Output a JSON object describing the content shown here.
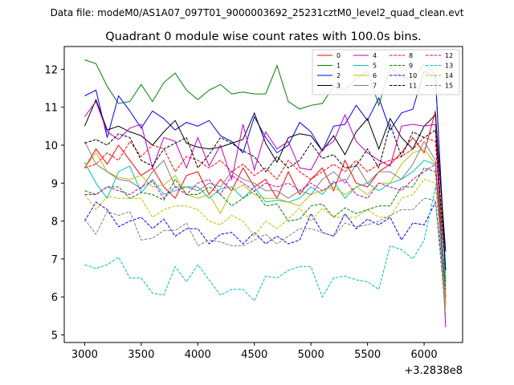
{
  "chart_data": {
    "type": "line",
    "supertitle": "Data file: modeM0/AS1A07_097T01_9000003692_25231cztM0_level2_quad_clean.evt",
    "title": "Quadrant 0 module wise count rates with 100.0s bins.",
    "xlabel": "",
    "ylabel": "",
    "x_offset_label": "+3.2838e8",
    "xlim": [
      2820,
      6340
    ],
    "ylim": [
      4.8,
      12.6
    ],
    "xticks": [
      3000,
      3500,
      4000,
      4500,
      5000,
      5500,
      6000
    ],
    "yticks": [
      5,
      6,
      7,
      8,
      9,
      10,
      11,
      12
    ],
    "x": [
      3000,
      3100,
      3200,
      3300,
      3400,
      3500,
      3600,
      3700,
      3800,
      3900,
      4000,
      4100,
      4200,
      4300,
      4400,
      4500,
      4600,
      4700,
      4800,
      4900,
      5000,
      5100,
      5200,
      5300,
      5400,
      5500,
      5600,
      5700,
      5800,
      5900,
      6000,
      6100,
      6190
    ],
    "legend_position": "top-right",
    "series": [
      {
        "name": "0",
        "color": "#ff0000",
        "dash": "solid",
        "values": [
          9.4,
          9.9,
          9.5,
          10.0,
          9.6,
          9.2,
          9.4,
          8.9,
          8.6,
          9.2,
          9.3,
          8.7,
          9.1,
          8.8,
          9.4,
          8.9,
          9.1,
          8.6,
          9.3,
          8.7,
          9.1,
          9.4,
          8.8,
          9.6,
          9.0,
          8.9,
          9.3,
          9.5,
          9.8,
          10.2,
          9.8,
          10.9,
          5.8
        ]
      },
      {
        "name": "1",
        "color": "#008000",
        "dash": "solid",
        "values": [
          12.25,
          12.15,
          11.55,
          11.1,
          11.15,
          11.6,
          11.15,
          11.65,
          11.9,
          11.45,
          11.2,
          11.45,
          11.6,
          11.35,
          11.4,
          11.35,
          11.35,
          12.1,
          11.15,
          10.95,
          11.05,
          11.1,
          11.55,
          11.45,
          11.75,
          11.95,
          11.05,
          12.05,
          11.8,
          11.7,
          12.15,
          11.85,
          6.4
        ]
      },
      {
        "name": "2",
        "color": "#0000ff",
        "dash": "solid",
        "values": [
          11.3,
          11.45,
          10.2,
          11.3,
          10.9,
          10.45,
          10.9,
          10.7,
          10.4,
          10.6,
          10.5,
          10.65,
          10.25,
          10.1,
          9.8,
          10.75,
          10.2,
          9.8,
          10.0,
          10.6,
          10.35,
          9.85,
          10.5,
          10.55,
          11.05,
          10.65,
          11.25,
          10.4,
          10.85,
          10.95,
          11.95,
          11.8,
          6.7
        ]
      },
      {
        "name": "3",
        "color": "#000000",
        "dash": "solid",
        "values": [
          10.5,
          11.2,
          10.4,
          10.5,
          10.35,
          10.25,
          10.0,
          10.35,
          10.65,
          10.05,
          9.95,
          9.9,
          9.95,
          10.05,
          10.15,
          10.85,
          10.05,
          9.55,
          10.2,
          10.3,
          10.25,
          9.85,
          10.25,
          9.75,
          10.35,
          10.7,
          9.9,
          10.7,
          10.2,
          9.9,
          10.5,
          10.8,
          7.2
        ]
      },
      {
        "name": "4",
        "color": "#bf00bf",
        "dash": "solid",
        "values": [
          10.75,
          11.15,
          10.35,
          10.15,
          10.45,
          10.55,
          9.4,
          10.2,
          10.1,
          9.4,
          10.2,
          9.45,
          10.0,
          9.1,
          10.55,
          9.35,
          10.35,
          9.9,
          10.1,
          9.4,
          9.35,
          9.9,
          10.1,
          10.8,
          10.1,
          9.8,
          9.6,
          9.45,
          10.5,
          10.55,
          10.5,
          10.55,
          5.2
        ]
      },
      {
        "name": "5",
        "color": "#00bfbf",
        "dash": "solid",
        "values": [
          9.55,
          9.0,
          8.6,
          9.3,
          9.45,
          8.75,
          9.1,
          8.7,
          8.8,
          8.9,
          8.9,
          8.6,
          8.85,
          8.9,
          8.6,
          8.9,
          8.5,
          8.55,
          8.5,
          8.6,
          8.9,
          8.7,
          9.05,
          8.6,
          8.9,
          9.0,
          8.8,
          9.0,
          9.1,
          9.3,
          9.6,
          9.5,
          6.3
        ]
      },
      {
        "name": "6",
        "color": "#bfbf00",
        "dash": "solid",
        "values": [
          9.4,
          9.8,
          9.3,
          9.15,
          9.1,
          9.2,
          8.9,
          8.95,
          9.2,
          8.7,
          8.6,
          8.7,
          8.2,
          8.8,
          8.95,
          8.7,
          8.6,
          8.6,
          8.5,
          8.4,
          8.7,
          8.8,
          8.9,
          8.7,
          8.9,
          8.7,
          9.0,
          9.0,
          9.5,
          9.8,
          9.9,
          9.5,
          5.7
        ]
      },
      {
        "name": "7",
        "color": "#808080",
        "dash": "solid",
        "values": [
          10.1,
          9.5,
          9.3,
          9.1,
          9.05,
          8.85,
          9.3,
          9.6,
          8.9,
          8.9,
          8.8,
          9.0,
          8.9,
          9.3,
          9.1,
          9.0,
          8.8,
          8.8,
          8.6,
          8.8,
          8.7,
          9.1,
          9.3,
          9.0,
          9.5,
          9.0,
          9.3,
          9.3,
          9.1,
          9.5,
          10.1,
          9.6,
          5.4
        ]
      },
      {
        "name": "8",
        "color": "#ff0000",
        "dash": "dashed",
        "values": [
          9.4,
          9.5,
          9.8,
          9.6,
          10.1,
          9.7,
          10.0,
          9.9,
          9.3,
          9.7,
          9.6,
          9.4,
          9.6,
          9.3,
          9.5,
          9.2,
          9.4,
          9.1,
          9.6,
          9.3,
          9.1,
          9.3,
          9.5,
          9.3,
          9.6,
          9.3,
          9.5,
          9.6,
          9.7,
          9.9,
          10.2,
          10.1,
          6.0
        ]
      },
      {
        "name": "9",
        "color": "#008000",
        "dash": "dashed",
        "values": [
          8.8,
          8.7,
          8.9,
          8.9,
          8.6,
          8.75,
          8.7,
          8.55,
          9.1,
          8.7,
          8.7,
          8.9,
          8.7,
          8.4,
          8.6,
          8.8,
          8.4,
          8.45,
          8.0,
          8.05,
          8.4,
          8.45,
          8.1,
          8.35,
          8.2,
          8.3,
          8.4,
          8.4,
          8.9,
          8.9,
          9.4,
          9.3,
          6.2
        ]
      },
      {
        "name": "10",
        "color": "#0000ff",
        "dash": "dashed",
        "values": [
          8.0,
          8.5,
          8.3,
          7.85,
          8.0,
          8.1,
          7.8,
          8.05,
          7.6,
          7.8,
          7.8,
          7.4,
          7.65,
          7.7,
          7.4,
          7.7,
          7.4,
          7.6,
          7.4,
          7.5,
          8.2,
          7.7,
          7.6,
          8.2,
          7.8,
          8.05,
          7.9,
          8.1,
          7.5,
          7.95,
          7.9,
          8.5,
          6.0
        ]
      },
      {
        "name": "11",
        "color": "#000000",
        "dash": "dashed",
        "values": [
          10.05,
          10.15,
          10.0,
          10.3,
          10.2,
          9.6,
          9.45,
          9.9,
          10.05,
          10.2,
          9.4,
          9.75,
          10.2,
          10.05,
          9.85,
          9.7,
          9.3,
          9.7,
          9.4,
          9.6,
          10.05,
          9.65,
          9.75,
          9.4,
          9.45,
          9.9,
          9.4,
          10.55,
          9.7,
          10.35,
          10.2,
          10.4,
          6.7
        ]
      },
      {
        "name": "12",
        "color": "#bf00bf",
        "dash": "dashed",
        "values": [
          8.7,
          8.7,
          8.9,
          8.8,
          8.7,
          8.9,
          9.05,
          8.6,
          8.9,
          8.7,
          9.0,
          9.1,
          8.7,
          9.2,
          9.0,
          8.8,
          9.0,
          8.9,
          9.0,
          8.8,
          9.0,
          8.8,
          9.0,
          9.1,
          8.7,
          8.6,
          9.0,
          8.9,
          8.8,
          9.1,
          9.3,
          9.5,
          5.9
        ]
      },
      {
        "name": "13",
        "color": "#00bfbf",
        "dash": "dashed",
        "values": [
          6.85,
          6.75,
          6.85,
          7.05,
          6.5,
          6.5,
          6.1,
          6.05,
          6.8,
          6.4,
          6.85,
          6.45,
          6.05,
          6.2,
          6.2,
          5.9,
          6.55,
          6.5,
          6.7,
          6.8,
          6.8,
          6.0,
          6.5,
          6.55,
          6.45,
          6.4,
          6.2,
          7.35,
          7.25,
          7.0,
          7.5,
          8.9,
          6.5
        ]
      },
      {
        "name": "14",
        "color": "#bfbf00",
        "dash": "dashed",
        "values": [
          8.7,
          8.3,
          8.65,
          8.6,
          8.6,
          8.6,
          8.1,
          8.3,
          8.4,
          8.4,
          8.3,
          8.0,
          7.9,
          8.15,
          8.0,
          7.6,
          8.0,
          7.8,
          8.05,
          8.35,
          8.0,
          8.35,
          8.1,
          8.1,
          8.1,
          8.3,
          8.1,
          8.1,
          8.6,
          8.7,
          9.1,
          9.0,
          5.9
        ]
      },
      {
        "name": "15",
        "color": "#808080",
        "dash": "dashed",
        "values": [
          8.05,
          7.65,
          8.25,
          8.15,
          8.25,
          7.5,
          7.55,
          7.75,
          7.75,
          7.95,
          7.35,
          7.5,
          7.45,
          7.35,
          7.35,
          7.5,
          7.65,
          7.4,
          7.6,
          7.8,
          7.8,
          7.7,
          7.6,
          7.95,
          7.85,
          7.9,
          8.0,
          8.15,
          8.3,
          8.3,
          8.6,
          8.55,
          5.5
        ]
      }
    ]
  }
}
